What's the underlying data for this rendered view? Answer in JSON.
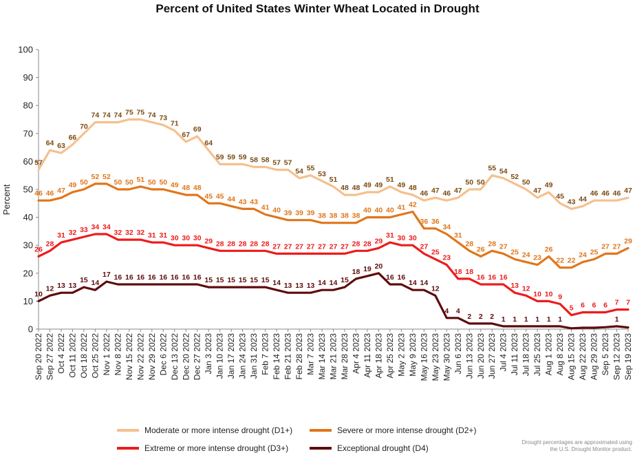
{
  "chart_data": {
    "type": "line",
    "title": "Percent of United States Winter Wheat Located in Drought",
    "ylabel": "Percent",
    "ylim": [
      0,
      100
    ],
    "yticks": [
      0,
      10,
      20,
      30,
      40,
      50,
      60,
      70,
      80,
      90,
      100
    ],
    "grid": false,
    "legend_position": "bottom",
    "x": [
      "Sep 20 2022",
      "Sep 27 2022",
      "Oct 4 2022",
      "Oct 11 2022",
      "Oct 18 2022",
      "Oct 25 2022",
      "Nov 1 2022",
      "Nov 8 2022",
      "Nov 15 2022",
      "Nov 22 2022",
      "Nov 29 2022",
      "Dec 6 2022",
      "Dec 13 2022",
      "Dec 20 2022",
      "Dec 27 2022",
      "Jan 3 2023",
      "Jan 10 2023",
      "Jan 17 2023",
      "Jan 24 2023",
      "Jan 31 2023",
      "Feb 7 2023",
      "Feb 14 2023",
      "Feb 21 2023",
      "Feb 28 2023",
      "Mar 7 2023",
      "Mar 14 2023",
      "Mar 21 2023",
      "Mar 28 2023",
      "Apr 4 2023",
      "Apr 11 2023",
      "Apr 18 2023",
      "Apr 25 2023",
      "May 2 2023",
      "May 9 2023",
      "May 16 2023",
      "May 23 2023",
      "May 30 2023",
      "Jun 6 2023",
      "Jun 13 2023",
      "Jun 20 2023",
      "Jun 27 2023",
      "Jul 4 2023",
      "Jul 11 2023",
      "Jul 18 2023",
      "Jul 25 2023",
      "Aug 1 2023",
      "Aug 8 2023",
      "Aug 15 2023",
      "Aug 22 2023",
      "Aug 29 2023",
      "Sep 5 2023",
      "Sep 12 2023",
      "Sep 19 2023"
    ],
    "series": [
      {
        "name": "Moderate or more intense drought (D1+)",
        "color": "#f5c08e",
        "label_color": "#7a4a10",
        "values": [
          57,
          64,
          63,
          66,
          70,
          74,
          74,
          74,
          75,
          75,
          74,
          73,
          71,
          67,
          69,
          64,
          59,
          59,
          59,
          58,
          58,
          57,
          57,
          54,
          55,
          53,
          51,
          48,
          48,
          49,
          49,
          51,
          49,
          48,
          46,
          47,
          46,
          47,
          50,
          50,
          55,
          54,
          52,
          50,
          47,
          49,
          45,
          43,
          44,
          46,
          46,
          46,
          47
        ],
        "labels": [
          57,
          64,
          63,
          66,
          70,
          74,
          74,
          74,
          75,
          75,
          74,
          73,
          71,
          67,
          69,
          64,
          59,
          59,
          59,
          58,
          58,
          57,
          57,
          54,
          55,
          53,
          51,
          48,
          48,
          49,
          49,
          51,
          49,
          48,
          46,
          47,
          46,
          47,
          50,
          50,
          55,
          54,
          52,
          50,
          47,
          49,
          45,
          43,
          44,
          46,
          46,
          46,
          47
        ]
      },
      {
        "name": "Severe or more intense drought (D2+)",
        "color": "#e0761a",
        "label_color": "#e0761a",
        "values": [
          46,
          46,
          47,
          49,
          50,
          52,
          52,
          50,
          50,
          51,
          50,
          50,
          49,
          48,
          48,
          45,
          45,
          44,
          43,
          43,
          41,
          40,
          39,
          39,
          39,
          38,
          38,
          38,
          38,
          40,
          40,
          40,
          41,
          42,
          36,
          36,
          34,
          31,
          28,
          26,
          28,
          27,
          25,
          24,
          23,
          26,
          22,
          22,
          24,
          25,
          27,
          27,
          29
        ],
        "labels": [
          46,
          46,
          47,
          49,
          50,
          52,
          52,
          50,
          50,
          51,
          50,
          50,
          49,
          48,
          48,
          45,
          45,
          44,
          43,
          43,
          41,
          40,
          39,
          39,
          39,
          38,
          38,
          38,
          38,
          40,
          40,
          40,
          41,
          42,
          36,
          36,
          34,
          31,
          28,
          26,
          28,
          27,
          25,
          24,
          23,
          26,
          22,
          22,
          24,
          25,
          27,
          27,
          29
        ]
      },
      {
        "name": "Extreme or more intense drought (D3+)",
        "color": "#ee1b1b",
        "label_color": "#ee1b1b",
        "values": [
          26,
          28,
          31,
          32,
          33,
          34,
          34,
          32,
          32,
          32,
          31,
          31,
          30,
          30,
          30,
          29,
          28,
          28,
          28,
          28,
          28,
          27,
          27,
          27,
          27,
          27,
          27,
          27,
          28,
          28,
          29,
          31,
          30,
          30,
          27,
          25,
          23,
          18,
          18,
          16,
          16,
          16,
          13,
          12,
          10,
          10,
          9,
          5,
          6,
          6,
          6,
          7,
          7
        ],
        "labels": [
          26,
          28,
          31,
          32,
          33,
          34,
          34,
          32,
          32,
          32,
          31,
          31,
          30,
          30,
          30,
          29,
          28,
          28,
          28,
          28,
          28,
          27,
          27,
          27,
          27,
          27,
          27,
          27,
          28,
          28,
          29,
          31,
          30,
          30,
          27,
          25,
          23,
          18,
          18,
          16,
          16,
          16,
          13,
          12,
          10,
          10,
          9,
          5,
          6,
          6,
          6,
          7,
          7
        ]
      },
      {
        "name": "Exceptional drought (D4)",
        "color": "#5e0b0b",
        "label_color": "#5e0b0b",
        "values": [
          10,
          12,
          13,
          13,
          15,
          14,
          17,
          16,
          16,
          16,
          16,
          16,
          16,
          16,
          16,
          15,
          15,
          15,
          15,
          15,
          15,
          14,
          13,
          13,
          13,
          14,
          14,
          15,
          18,
          19,
          20,
          16,
          16,
          14,
          14,
          12,
          4,
          4,
          2,
          2,
          2,
          1,
          1,
          1,
          1,
          1,
          1,
          0.3,
          0.5,
          0.5,
          0.7,
          1,
          0.6
        ],
        "labels": [
          10,
          12,
          13,
          13,
          15,
          14,
          17,
          16,
          16,
          16,
          16,
          16,
          16,
          16,
          16,
          15,
          15,
          15,
          15,
          15,
          15,
          14,
          13,
          13,
          13,
          14,
          14,
          15,
          18,
          19,
          20,
          16,
          16,
          14,
          14,
          12,
          4,
          4,
          2,
          2,
          2,
          1,
          1,
          1,
          1,
          1,
          1,
          null,
          null,
          null,
          null,
          1,
          null
        ]
      }
    ],
    "footnote": "Drought percentages are approximated using the U.S. Drought Monitor product."
  }
}
